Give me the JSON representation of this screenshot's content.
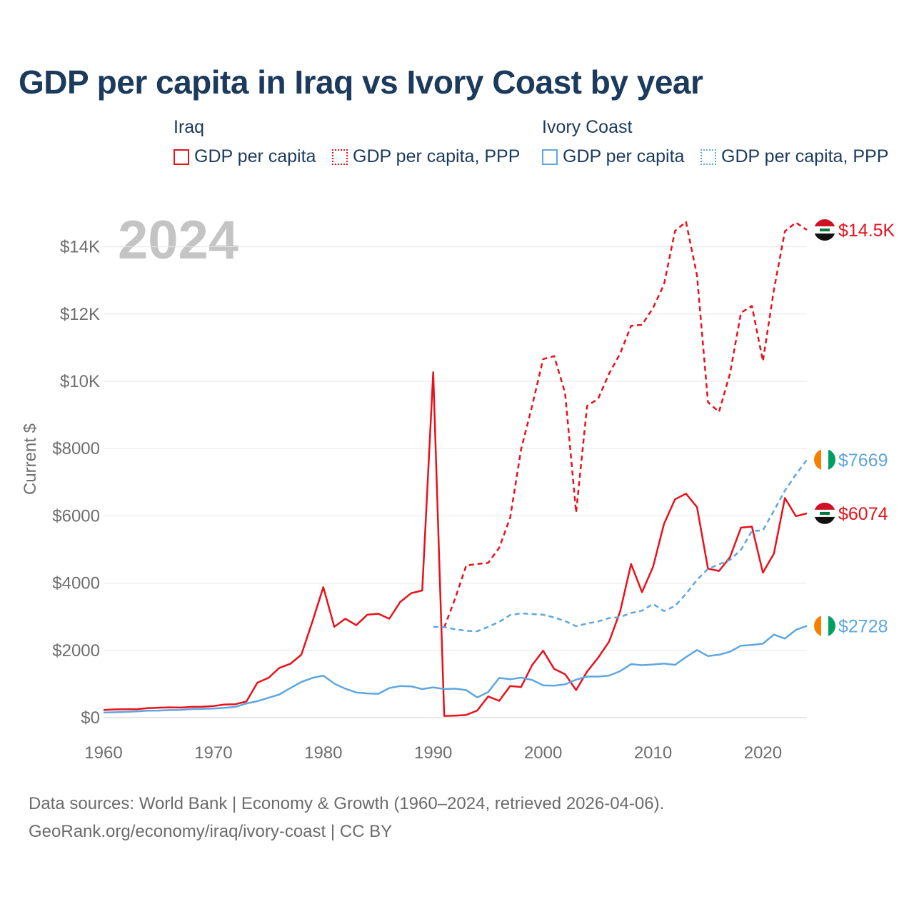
{
  "title": "GDP per capita in Iraq vs Ivory Coast by year",
  "legend": {
    "groups": [
      {
        "name": "Iraq",
        "color": "#e8111a",
        "items": [
          {
            "label": "GDP per capita",
            "style": "solid"
          },
          {
            "label": "GDP per capita, PPP",
            "style": "dotted"
          }
        ]
      },
      {
        "name": "Ivory Coast",
        "color": "#5ea6e0",
        "items": [
          {
            "label": "GDP per capita",
            "style": "solid"
          },
          {
            "label": "GDP per capita, PPP",
            "style": "dotted"
          }
        ]
      }
    ]
  },
  "footer": {
    "line1": "Data sources: World Bank | Economy & Growth (1960–2024, retrieved 2026-04-06).",
    "line2": "GeoRank.org/economy/iraq/ivory-coast | CC BY"
  },
  "chart_data": {
    "type": "line",
    "year_watermark": "2024",
    "ylabel": "Current $",
    "xlabel": "",
    "xlim": [
      1960,
      2024
    ],
    "ylim": [
      0,
      15000
    ],
    "x_ticks": [
      "1960",
      "1970",
      "1980",
      "1990",
      "2000",
      "2010",
      "2020"
    ],
    "x_tick_values": [
      1960,
      1970,
      1980,
      1990,
      2000,
      2010,
      2020
    ],
    "y_ticks": [
      "$0",
      "$2000",
      "$4000",
      "$6000",
      "$8000",
      "$10K",
      "$12K",
      "$14K"
    ],
    "y_tick_values": [
      0,
      2000,
      4000,
      6000,
      8000,
      10000,
      12000,
      14000
    ],
    "grid": true,
    "series": [
      {
        "name": "Iraq GDP per capita",
        "color": "#e8111a",
        "dash": "solid",
        "end_label": "$6074",
        "flag": "iraq",
        "x": [
          1960,
          1961,
          1962,
          1963,
          1964,
          1965,
          1966,
          1967,
          1968,
          1969,
          1970,
          1971,
          1972,
          1973,
          1974,
          1975,
          1976,
          1977,
          1978,
          1979,
          1980,
          1981,
          1982,
          1983,
          1984,
          1985,
          1986,
          1987,
          1988,
          1989,
          1990,
          1991,
          1992,
          1993,
          1994,
          1995,
          1996,
          1997,
          1998,
          1999,
          2000,
          2001,
          2002,
          2003,
          2004,
          2005,
          2006,
          2007,
          2008,
          2009,
          2010,
          2011,
          2012,
          2013,
          2014,
          2015,
          2016,
          2017,
          2018,
          2019,
          2020,
          2021,
          2022,
          2023,
          2024
        ],
        "values": [
          230,
          245,
          250,
          250,
          280,
          295,
          305,
          300,
          320,
          325,
          345,
          390,
          400,
          480,
          1040,
          1180,
          1480,
          1600,
          1870,
          2850,
          3880,
          2700,
          2940,
          2750,
          3060,
          3090,
          2940,
          3440,
          3700,
          3780,
          10270,
          50,
          60,
          80,
          210,
          630,
          500,
          940,
          910,
          1560,
          1990,
          1450,
          1290,
          820,
          1370,
          1780,
          2260,
          3150,
          4570,
          3730,
          4480,
          5760,
          6490,
          6660,
          6260,
          4430,
          4360,
          4770,
          5650,
          5680,
          4310,
          4880,
          6530,
          5990,
          6074
        ]
      },
      {
        "name": "Iraq GDP per capita, PPP",
        "color": "#e8111a",
        "dash": "dashed",
        "end_label": "$14.5K",
        "flag": "iraq",
        "x": [
          1991,
          1992,
          1993,
          1994,
          1995,
          1996,
          1997,
          1998,
          1999,
          2000,
          2001,
          2002,
          2003,
          2004,
          2005,
          2006,
          2007,
          2008,
          2009,
          2010,
          2011,
          2012,
          2013,
          2014,
          2015,
          2016,
          2017,
          2018,
          2019,
          2020,
          2021,
          2022,
          2023,
          2024
        ],
        "values": [
          2680,
          3550,
          4520,
          4570,
          4600,
          5050,
          5950,
          7980,
          9270,
          10660,
          10750,
          9650,
          6100,
          9270,
          9480,
          10230,
          10820,
          11650,
          11680,
          12180,
          12880,
          14470,
          14740,
          13150,
          9380,
          9090,
          10230,
          12040,
          12240,
          10600,
          12720,
          14460,
          14720,
          14500
        ]
      },
      {
        "name": "Ivory Coast GDP per capita",
        "color": "#5ea6e0",
        "dash": "solid",
        "end_label": "$2728",
        "flag": "ivory-coast",
        "x": [
          1960,
          1961,
          1962,
          1963,
          1964,
          1965,
          1966,
          1967,
          1968,
          1969,
          1970,
          1971,
          1972,
          1973,
          1974,
          1975,
          1976,
          1977,
          1978,
          1979,
          1980,
          1981,
          1982,
          1983,
          1984,
          1985,
          1986,
          1987,
          1988,
          1989,
          1990,
          1991,
          1992,
          1993,
          1994,
          1995,
          1996,
          1997,
          1998,
          1999,
          2000,
          2001,
          2002,
          2003,
          2004,
          2005,
          2006,
          2007,
          2008,
          2009,
          2010,
          2011,
          2012,
          2013,
          2014,
          2015,
          2016,
          2017,
          2018,
          2019,
          2020,
          2021,
          2022,
          2023,
          2024
        ],
        "values": [
          150,
          160,
          170,
          185,
          205,
          210,
          225,
          230,
          255,
          260,
          270,
          290,
          320,
          420,
          490,
          590,
          690,
          880,
          1060,
          1180,
          1250,
          1010,
          860,
          750,
          720,
          710,
          880,
          940,
          930,
          850,
          900,
          850,
          860,
          820,
          600,
          760,
          1180,
          1140,
          1190,
          1120,
          960,
          950,
          990,
          1130,
          1220,
          1220,
          1250,
          1380,
          1590,
          1560,
          1580,
          1610,
          1570,
          1800,
          2010,
          1830,
          1870,
          1960,
          2140,
          2160,
          2200,
          2470,
          2350,
          2610,
          2728
        ]
      },
      {
        "name": "Ivory Coast GDP per capita, PPP",
        "color": "#5ea6e0",
        "dash": "dashed",
        "end_label": "$7669",
        "flag": "ivory-coast",
        "x": [
          1990,
          1991,
          1992,
          1993,
          1994,
          1995,
          1996,
          1997,
          1998,
          1999,
          2000,
          2001,
          2002,
          2003,
          2004,
          2005,
          2006,
          2007,
          2008,
          2009,
          2010,
          2011,
          2012,
          2013,
          2014,
          2015,
          2016,
          2017,
          2018,
          2019,
          2020,
          2021,
          2022,
          2023,
          2024
        ],
        "values": [
          2700,
          2690,
          2630,
          2580,
          2570,
          2700,
          2850,
          3050,
          3100,
          3080,
          3060,
          2980,
          2870,
          2720,
          2800,
          2860,
          2960,
          2990,
          3110,
          3180,
          3380,
          3170,
          3320,
          3680,
          4100,
          4420,
          4560,
          4690,
          4990,
          5550,
          5570,
          6150,
          6750,
          7230,
          7669
        ]
      }
    ]
  }
}
